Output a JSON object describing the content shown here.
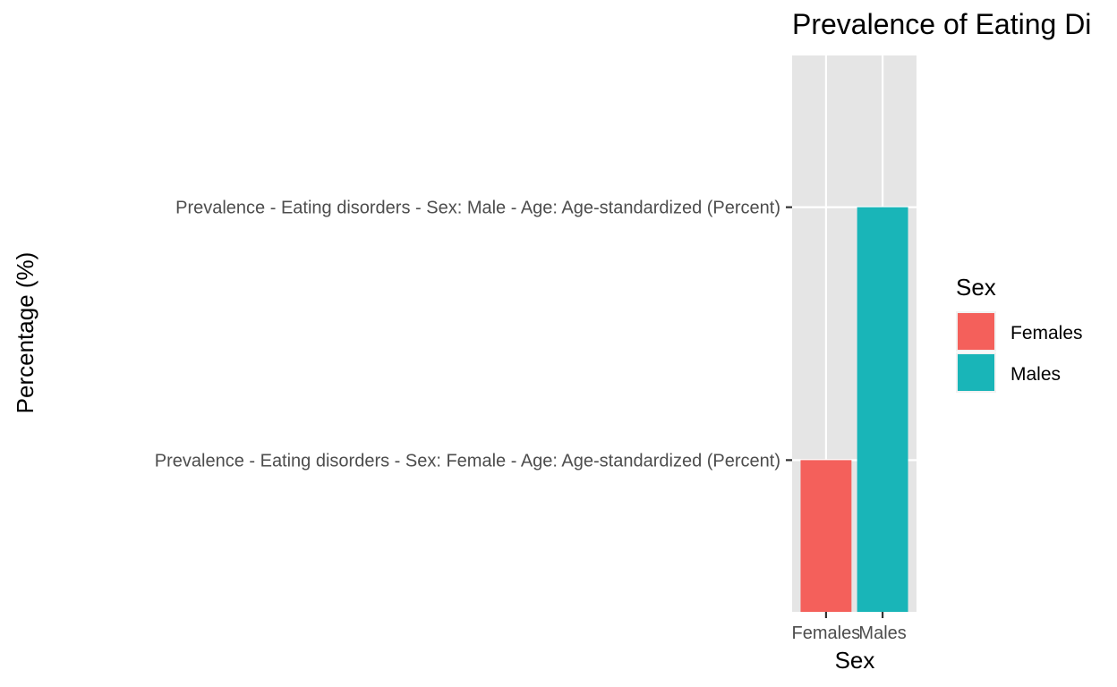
{
  "chart_data": {
    "type": "bar",
    "title": "Prevalence of Eating Di",
    "xlabel": "Sex",
    "ylabel": "Percentage (%)",
    "categories": [
      "Females",
      "Males"
    ],
    "y_categories": [
      "Prevalence - Eating disorders - Sex: Female - Age: Age-standardized (Percent)",
      "Prevalence - Eating disorders - Sex: Male - Age: Age-standardized (Percent)"
    ],
    "values": [
      "Prevalence - Eating disorders - Sex: Female - Age: Age-standardized (Percent)",
      "Prevalence - Eating disorders - Sex: Male - Age: Age-standardized (Percent)"
    ],
    "colors": [
      "#F8766D",
      "#00BFC4"
    ],
    "grid": true,
    "legend": {
      "title": "Sex",
      "position": "right",
      "entries": [
        "Females",
        "Males"
      ]
    }
  },
  "colors": {
    "panel_bg": "#E5E5E5",
    "grid": "#FFFFFF",
    "female": "#F4605B",
    "male": "#19B5B8"
  }
}
